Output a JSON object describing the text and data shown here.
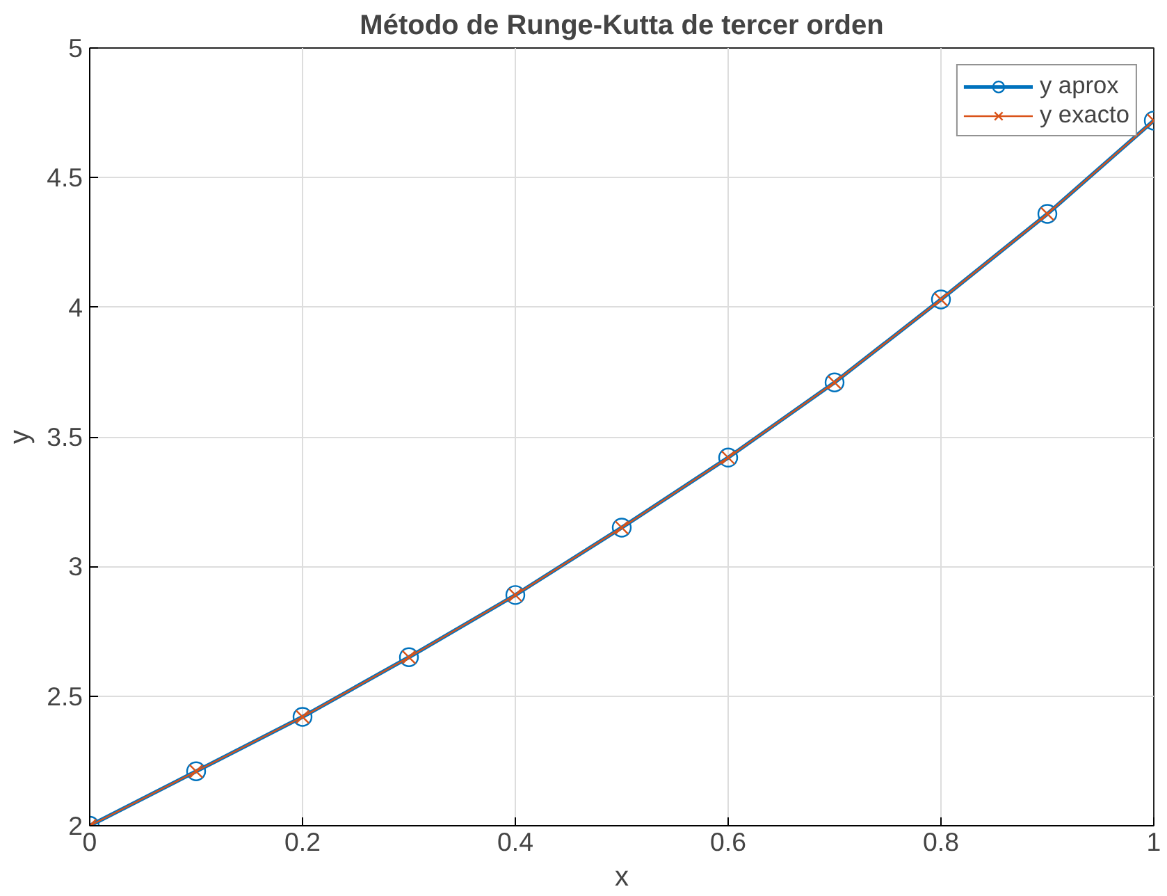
{
  "chart_data": {
    "type": "line",
    "title": "Método de Runge-Kutta de tercer orden",
    "xlabel": "x",
    "ylabel": "y",
    "x": [
      0,
      0.1,
      0.2,
      0.3,
      0.4,
      0.5,
      0.6,
      0.7,
      0.8,
      0.9,
      1.0
    ],
    "series": [
      {
        "name": "y aprox",
        "color": "#0072bd",
        "marker": "circle",
        "values": [
          2.0,
          2.21,
          2.42,
          2.65,
          2.89,
          3.15,
          3.42,
          3.71,
          4.03,
          4.36,
          4.72
        ]
      },
      {
        "name": "y exacto",
        "color": "#d95319",
        "marker": "cross",
        "values": [
          2.0,
          2.21,
          2.42,
          2.65,
          2.89,
          3.15,
          3.42,
          3.71,
          4.03,
          4.36,
          4.72
        ]
      }
    ],
    "xlim": [
      0,
      1
    ],
    "ylim": [
      2,
      5
    ],
    "xticks": [
      0,
      0.2,
      0.4,
      0.6,
      0.8,
      1
    ],
    "yticks": [
      2,
      2.5,
      3,
      3.5,
      4,
      4.5,
      5
    ],
    "grid": true,
    "legend": "top right",
    "line_style": "solid"
  }
}
